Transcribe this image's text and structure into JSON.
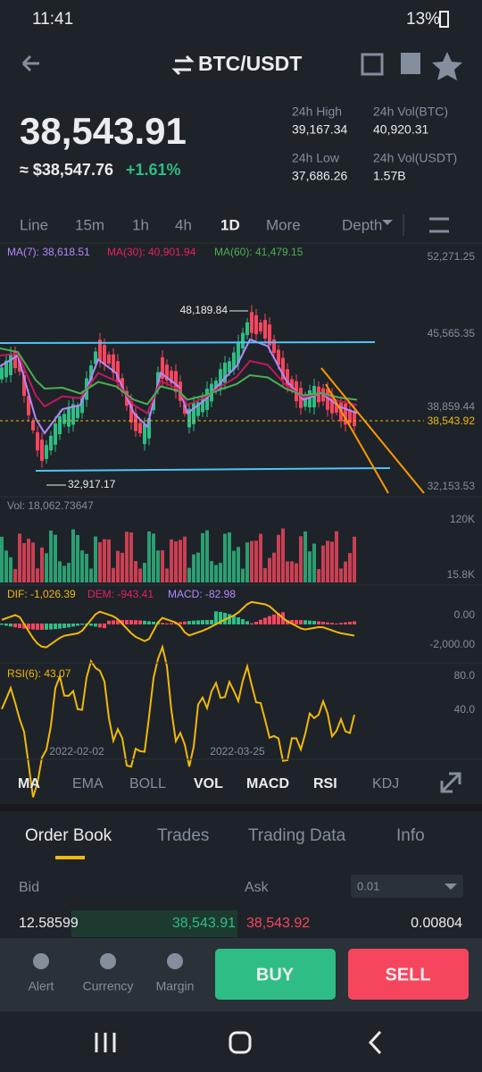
{
  "status_bar": {
    "time": "11:41",
    "battery": "13%"
  },
  "header": {
    "pair": "BTC/USDT"
  },
  "ticker": {
    "price": "38,543.91",
    "usd": "≈ $38,547.76",
    "change": "+1.61%",
    "stats": [
      {
        "label": "24h High",
        "value": "39,167.34"
      },
      {
        "label": "24h Vol(BTC)",
        "value": "40,920.31"
      },
      {
        "label": "24h Low",
        "value": "37,686.26"
      },
      {
        "label": "24h Vol(USDT)",
        "value": "1.57B"
      }
    ]
  },
  "intervals": [
    "Line",
    "15m",
    "1h",
    "4h",
    "1D",
    "More",
    "Depth"
  ],
  "chart": {
    "ma": [
      "MA(7): 38,618.51",
      "MA(30): 40,901.94",
      "MA(60): 41,479.15"
    ],
    "price_labels": [
      "52,271.25",
      "45,565.35",
      "38,859.44",
      "32,153.53"
    ],
    "current": "38,543.92",
    "high": "48,189.84",
    "low": "32,917.17",
    "vol": "Vol: 18,062.73647",
    "vol_labels": [
      "120K",
      "15.8K"
    ],
    "macd": [
      "DIF: -1,026.39",
      "DEM: -943.41",
      "MACD: -82.98"
    ],
    "macd_labels": [
      "0.00",
      "-2,000.00"
    ],
    "rsi": "RSI(6): 43.07",
    "rsi_labels": [
      "80.0",
      "40.0"
    ],
    "dates": [
      "2022-02-02",
      "2022-03-25"
    ]
  },
  "indicators": [
    "MA",
    "EMA",
    "BOLL",
    "VOL",
    "MACD",
    "RSI",
    "KDJ"
  ],
  "tabs": [
    "Order Book",
    "Trades",
    "Trading Data",
    "Info"
  ],
  "order_book": {
    "bid": "Bid",
    "ask": "Ask",
    "precision": "0.01",
    "row": [
      "12.58599",
      "38,543.91",
      "38,543.92",
      "0.00804"
    ]
  },
  "actions": {
    "nav": [
      "Alert",
      "Currency",
      "Margin"
    ],
    "buy": "BUY",
    "sell": "SELL"
  }
}
